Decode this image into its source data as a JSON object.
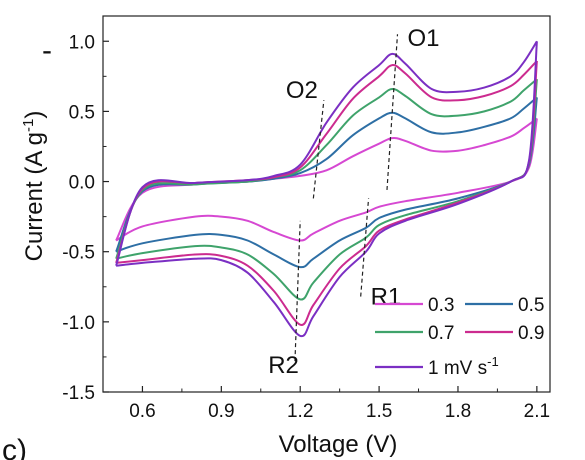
{
  "chart_data": {
    "type": "line",
    "xlabel": "Voltage (V)",
    "ylabel_main": "Current (A g",
    "ylabel_sup": "-1",
    "ylabel_tail": ")",
    "xlim": [
      0.45,
      2.15
    ],
    "ylim": [
      -1.5,
      1.18
    ],
    "x_ticks": [
      "0.6",
      "0.9",
      "1.2",
      "1.5",
      "1.8",
      "2.1"
    ],
    "y_ticks": [
      "1.0",
      "0.5",
      "0.0",
      "-0.5",
      "-1.0",
      "-1.5"
    ],
    "grid": false,
    "legend_placement": "bottom-right",
    "series": [
      {
        "name": "0.3",
        "color": "#d648d2",
        "anodic": [
          [
            0.5,
            -0.42
          ],
          [
            0.6,
            -0.08
          ],
          [
            0.8,
            -0.02
          ],
          [
            1.0,
            0.0
          ],
          [
            1.1,
            0.02
          ],
          [
            1.2,
            0.04
          ],
          [
            1.3,
            0.08
          ],
          [
            1.4,
            0.18
          ],
          [
            1.5,
            0.27
          ],
          [
            1.55,
            0.31
          ],
          [
            1.6,
            0.29
          ],
          [
            1.7,
            0.22
          ],
          [
            1.8,
            0.22
          ],
          [
            1.9,
            0.26
          ],
          [
            2.0,
            0.32
          ],
          [
            2.05,
            0.38
          ],
          [
            2.1,
            0.45
          ]
        ],
        "cathodic": [
          [
            2.1,
            0.45
          ],
          [
            2.07,
            0.1
          ],
          [
            2.0,
            0.0
          ],
          [
            1.8,
            -0.08
          ],
          [
            1.6,
            -0.14
          ],
          [
            1.5,
            -0.18
          ],
          [
            1.45,
            -0.22
          ],
          [
            1.35,
            -0.28
          ],
          [
            1.25,
            -0.37
          ],
          [
            1.2,
            -0.42
          ],
          [
            1.1,
            -0.36
          ],
          [
            1.0,
            -0.28
          ],
          [
            0.9,
            -0.25
          ],
          [
            0.8,
            -0.25
          ],
          [
            0.6,
            -0.32
          ],
          [
            0.5,
            -0.42
          ]
        ]
      },
      {
        "name": "0.5",
        "color": "#2e6fa5",
        "anodic": [
          [
            0.5,
            -0.5
          ],
          [
            0.6,
            -0.07
          ],
          [
            0.8,
            -0.02
          ],
          [
            1.0,
            0.0
          ],
          [
            1.1,
            0.02
          ],
          [
            1.2,
            0.06
          ],
          [
            1.3,
            0.16
          ],
          [
            1.4,
            0.33
          ],
          [
            1.5,
            0.45
          ],
          [
            1.55,
            0.49
          ],
          [
            1.6,
            0.45
          ],
          [
            1.7,
            0.35
          ],
          [
            1.8,
            0.35
          ],
          [
            1.9,
            0.39
          ],
          [
            2.0,
            0.45
          ],
          [
            2.05,
            0.52
          ],
          [
            2.1,
            0.6
          ]
        ],
        "cathodic": [
          [
            2.1,
            0.6
          ],
          [
            2.07,
            0.12
          ],
          [
            2.0,
            0.0
          ],
          [
            1.8,
            -0.12
          ],
          [
            1.6,
            -0.2
          ],
          [
            1.5,
            -0.26
          ],
          [
            1.45,
            -0.33
          ],
          [
            1.35,
            -0.42
          ],
          [
            1.25,
            -0.55
          ],
          [
            1.2,
            -0.61
          ],
          [
            1.1,
            -0.52
          ],
          [
            1.0,
            -0.42
          ],
          [
            0.9,
            -0.38
          ],
          [
            0.8,
            -0.38
          ],
          [
            0.6,
            -0.44
          ],
          [
            0.5,
            -0.5
          ]
        ]
      },
      {
        "name": "0.7",
        "color": "#3fa36b",
        "anodic": [
          [
            0.5,
            -0.55
          ],
          [
            0.6,
            -0.06
          ],
          [
            0.8,
            -0.02
          ],
          [
            1.0,
            0.0
          ],
          [
            1.1,
            0.03
          ],
          [
            1.2,
            0.08
          ],
          [
            1.3,
            0.26
          ],
          [
            1.4,
            0.47
          ],
          [
            1.5,
            0.6
          ],
          [
            1.55,
            0.66
          ],
          [
            1.6,
            0.61
          ],
          [
            1.7,
            0.48
          ],
          [
            1.8,
            0.47
          ],
          [
            1.9,
            0.5
          ],
          [
            2.0,
            0.57
          ],
          [
            2.05,
            0.65
          ],
          [
            2.1,
            0.73
          ]
        ],
        "cathodic": [
          [
            2.1,
            0.73
          ],
          [
            2.07,
            0.13
          ],
          [
            2.0,
            0.0
          ],
          [
            1.8,
            -0.14
          ],
          [
            1.6,
            -0.24
          ],
          [
            1.5,
            -0.31
          ],
          [
            1.45,
            -0.4
          ],
          [
            1.35,
            -0.52
          ],
          [
            1.25,
            -0.72
          ],
          [
            1.2,
            -0.84
          ],
          [
            1.1,
            -0.66
          ],
          [
            1.0,
            -0.52
          ],
          [
            0.9,
            -0.47
          ],
          [
            0.8,
            -0.46
          ],
          [
            0.6,
            -0.51
          ],
          [
            0.5,
            -0.55
          ]
        ]
      },
      {
        "name": "0.9",
        "color": "#cc2b8f",
        "anodic": [
          [
            0.5,
            -0.58
          ],
          [
            0.6,
            -0.05
          ],
          [
            0.8,
            -0.01
          ],
          [
            1.0,
            0.01
          ],
          [
            1.1,
            0.03
          ],
          [
            1.2,
            0.1
          ],
          [
            1.3,
            0.34
          ],
          [
            1.4,
            0.59
          ],
          [
            1.5,
            0.75
          ],
          [
            1.55,
            0.83
          ],
          [
            1.6,
            0.77
          ],
          [
            1.7,
            0.6
          ],
          [
            1.8,
            0.58
          ],
          [
            1.9,
            0.61
          ],
          [
            2.0,
            0.68
          ],
          [
            2.05,
            0.76
          ],
          [
            2.1,
            0.86
          ]
        ],
        "cathodic": [
          [
            2.1,
            0.86
          ],
          [
            2.07,
            0.14
          ],
          [
            2.0,
            0.0
          ],
          [
            1.8,
            -0.15
          ],
          [
            1.6,
            -0.27
          ],
          [
            1.5,
            -0.35
          ],
          [
            1.45,
            -0.46
          ],
          [
            1.35,
            -0.62
          ],
          [
            1.25,
            -0.88
          ],
          [
            1.2,
            -1.02
          ],
          [
            1.1,
            -0.78
          ],
          [
            1.0,
            -0.6
          ],
          [
            0.9,
            -0.53
          ],
          [
            0.8,
            -0.52
          ],
          [
            0.6,
            -0.56
          ],
          [
            0.5,
            -0.58
          ]
        ]
      },
      {
        "name": "1 mV s",
        "name_sup": "-1",
        "color": "#7b2fc3",
        "anodic": [
          [
            0.5,
            -0.6
          ],
          [
            0.6,
            -0.04
          ],
          [
            0.8,
            -0.01
          ],
          [
            1.0,
            0.01
          ],
          [
            1.1,
            0.04
          ],
          [
            1.2,
            0.12
          ],
          [
            1.3,
            0.42
          ],
          [
            1.4,
            0.67
          ],
          [
            1.5,
            0.83
          ],
          [
            1.55,
            0.91
          ],
          [
            1.6,
            0.84
          ],
          [
            1.7,
            0.66
          ],
          [
            1.8,
            0.64
          ],
          [
            1.9,
            0.67
          ],
          [
            2.0,
            0.75
          ],
          [
            2.05,
            0.85
          ],
          [
            2.1,
            1.0
          ]
        ],
        "cathodic": [
          [
            2.1,
            1.0
          ],
          [
            2.07,
            0.15
          ],
          [
            2.0,
            0.0
          ],
          [
            1.8,
            -0.16
          ],
          [
            1.6,
            -0.28
          ],
          [
            1.5,
            -0.37
          ],
          [
            1.45,
            -0.5
          ],
          [
            1.35,
            -0.68
          ],
          [
            1.25,
            -0.96
          ],
          [
            1.2,
            -1.1
          ],
          [
            1.1,
            -0.86
          ],
          [
            1.0,
            -0.65
          ],
          [
            0.9,
            -0.56
          ],
          [
            0.8,
            -0.55
          ],
          [
            0.6,
            -0.58
          ],
          [
            0.5,
            -0.6
          ]
        ]
      }
    ],
    "annotations": [
      {
        "label": "O1",
        "x": 1.55,
        "y": 0.91,
        "line_x": [
          1.53,
          1.57
        ],
        "line_y": [
          -0.06,
          1.05
        ]
      },
      {
        "label": "O2",
        "x": 1.28,
        "y": 0.55,
        "line_x": [
          1.25,
          1.29
        ],
        "line_y": [
          -0.12,
          0.58
        ]
      },
      {
        "label": "R1",
        "x": 1.45,
        "y": -0.75,
        "line_x": [
          1.43,
          1.46
        ],
        "line_y": [
          -0.82,
          -0.12
        ]
      },
      {
        "label": "R2",
        "x": 1.2,
        "y": -1.2,
        "line_x": [
          1.18,
          1.2
        ],
        "line_y": [
          -1.28,
          -0.28
        ]
      }
    ]
  },
  "panel_glyph": "c)",
  "top_glyph": "-"
}
